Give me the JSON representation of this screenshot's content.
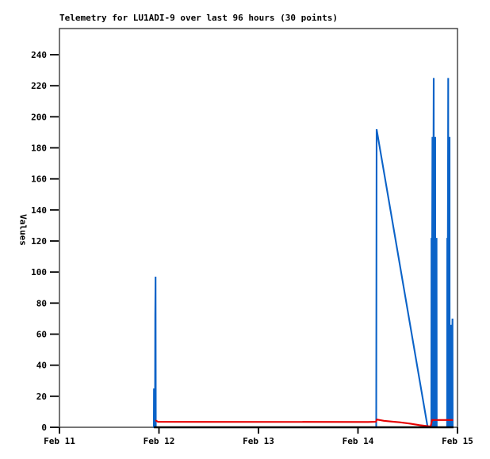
{
  "chart_data": {
    "type": "line",
    "title": "Telemetry for LU1ADI-9 over last 96 hours (30 points)",
    "ylabel": "Values",
    "xlabel": "",
    "ylim": [
      0,
      257
    ],
    "yticks": [
      0,
      20,
      40,
      60,
      80,
      100,
      120,
      140,
      160,
      180,
      200,
      220,
      240
    ],
    "xticks": [
      {
        "pos": 0,
        "label": "Feb 11"
      },
      {
        "pos": 1,
        "label": "Feb 12"
      },
      {
        "pos": 2,
        "label": "Feb 13"
      },
      {
        "pos": 3,
        "label": "Feb 14"
      },
      {
        "pos": 4,
        "label": "Feb 15"
      }
    ],
    "x_unit": "days after Feb 11",
    "grid": false,
    "legend_position": "none",
    "axis_color": "#2b2b2b",
    "series": [
      {
        "name": "series-blue",
        "color": "#0b63c8",
        "points": [
          [
            0.948,
            0
          ],
          [
            0.9495,
            25
          ],
          [
            0.951,
            0
          ],
          [
            0.96,
            0
          ],
          [
            0.9625,
            72
          ],
          [
            0.9655,
            97
          ],
          [
            0.968,
            0
          ],
          [
            2.0,
            0
          ],
          [
            3.183,
            0
          ],
          [
            3.187,
            192
          ],
          [
            3.7,
            0
          ],
          [
            3.737,
            0
          ],
          [
            3.7385,
            122
          ],
          [
            3.74,
            0
          ],
          [
            3.748,
            187
          ],
          [
            3.7495,
            0
          ],
          [
            3.761,
            225
          ],
          [
            3.7625,
            0
          ],
          [
            3.776,
            187
          ],
          [
            3.7775,
            0
          ],
          [
            3.79,
            122
          ],
          [
            3.7915,
            0
          ],
          [
            3.896,
            0
          ],
          [
            3.8975,
            122
          ],
          [
            3.899,
            0
          ],
          [
            3.907,
            225
          ],
          [
            3.9085,
            0
          ],
          [
            3.92,
            187
          ],
          [
            3.9215,
            0
          ],
          [
            3.933,
            66
          ],
          [
            3.9345,
            0
          ],
          [
            3.95,
            70
          ],
          [
            3.9515,
            0
          ]
        ]
      },
      {
        "name": "series-red",
        "color": "#e60000",
        "points": [
          [
            0.965,
            4.5
          ],
          [
            0.99,
            3.5
          ],
          [
            3.1,
            3.4
          ],
          [
            3.18,
            3.6
          ],
          [
            3.19,
            5.0
          ],
          [
            3.26,
            4.2
          ],
          [
            3.34,
            3.7
          ],
          [
            3.42,
            3.2
          ],
          [
            3.52,
            2.4
          ],
          [
            3.62,
            1.4
          ],
          [
            3.7,
            0.7
          ],
          [
            3.73,
            0.5
          ],
          [
            3.745,
            4.7
          ],
          [
            3.955,
            4.7
          ]
        ]
      },
      {
        "name": "series-black",
        "color": "#000000",
        "points": [
          [
            0.95,
            0
          ],
          [
            3.96,
            0
          ]
        ]
      }
    ]
  }
}
